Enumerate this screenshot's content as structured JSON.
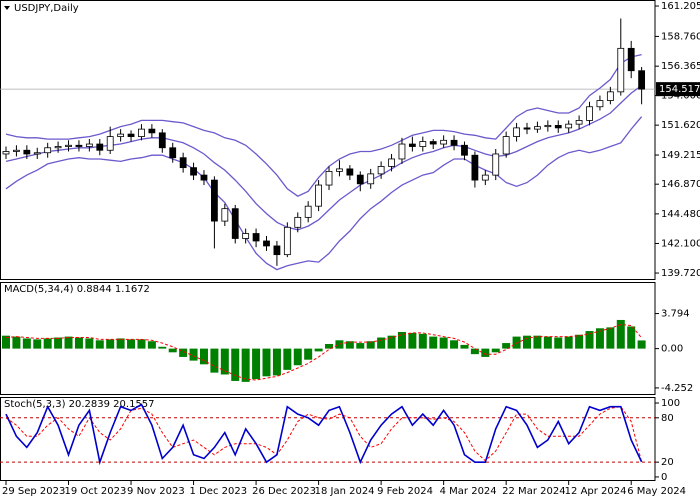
{
  "chart_data": [
    {
      "type": "candlestick",
      "title": "USDJPY,Daily",
      "categories": [
        "29 Sep 2023",
        null,
        null,
        null,
        null,
        null,
        "19 Oct 2023",
        null,
        null,
        null,
        null,
        null,
        "9 Nov 2023",
        null,
        null,
        null,
        null,
        null,
        "1 Dec 2023",
        null,
        null,
        null,
        null,
        null,
        "26 Dec 2023",
        null,
        null,
        null,
        null,
        null,
        "18 Jan 2024",
        null,
        null,
        null,
        null,
        null,
        "9 Feb 2024",
        null,
        null,
        null,
        null,
        null,
        "4 Mar 2024",
        null,
        null,
        null,
        null,
        null,
        "22 Mar 2024",
        null,
        null,
        null,
        null,
        null,
        "12 Apr 2024",
        null,
        null,
        null,
        null,
        null,
        "6 May 2024",
        null
      ],
      "open": [
        149.3,
        149.5,
        149.6,
        149.3,
        149.4,
        149.8,
        149.9,
        150.0,
        149.9,
        150.1,
        149.6,
        150.7,
        150.9,
        150.7,
        151.3,
        151.0,
        149.8,
        149.0,
        148.2,
        147.6,
        147.2,
        143.9,
        144.9,
        142.5,
        142.9,
        142.3,
        141.9,
        141.2,
        143.4,
        144.2,
        145.1,
        146.8,
        147.9,
        148.1,
        147.6,
        146.9,
        147.7,
        148.3,
        148.9,
        150.1,
        149.9,
        150.3,
        150.1,
        150.4,
        150.0,
        149.2,
        147.2,
        147.6,
        149.3,
        150.7,
        151.4,
        151.3,
        151.5,
        151.6,
        151.4,
        151.7,
        152.0,
        153.1,
        153.6,
        154.3,
        157.8,
        156.0
      ],
      "high": [
        149.9,
        150.0,
        150.0,
        149.8,
        150.2,
        150.3,
        150.4,
        150.4,
        150.5,
        150.5,
        151.5,
        151.3,
        151.2,
        151.7,
        151.7,
        151.3,
        150.2,
        149.4,
        148.6,
        148.0,
        147.5,
        145.3,
        145.2,
        143.3,
        143.3,
        142.7,
        142.3,
        143.8,
        144.6,
        145.5,
        147.2,
        148.3,
        148.8,
        148.4,
        147.9,
        148.1,
        148.7,
        149.3,
        150.6,
        150.7,
        150.7,
        150.5,
        150.8,
        150.8,
        150.3,
        149.5,
        148.0,
        149.7,
        151.1,
        151.8,
        151.8,
        151.9,
        152.0,
        152.0,
        152.0,
        152.4,
        153.5,
        154.0,
        154.7,
        160.2,
        158.4,
        156.3
      ],
      "low": [
        148.9,
        149.1,
        148.9,
        148.9,
        149.0,
        149.4,
        149.5,
        149.5,
        149.5,
        149.2,
        149.3,
        150.3,
        150.3,
        150.4,
        150.6,
        149.4,
        148.6,
        147.8,
        147.2,
        146.8,
        141.7,
        143.5,
        142.1,
        142.1,
        141.8,
        141.5,
        140.3,
        141.0,
        143.0,
        143.8,
        144.7,
        146.4,
        147.5,
        147.2,
        146.3,
        146.5,
        147.3,
        147.9,
        148.5,
        149.5,
        149.5,
        149.7,
        149.8,
        149.6,
        148.8,
        146.6,
        146.8,
        147.2,
        149.0,
        150.3,
        150.9,
        151.0,
        151.1,
        151.0,
        151.0,
        151.3,
        151.6,
        152.8,
        153.3,
        154.0,
        155.4,
        153.3
      ],
      "close": [
        149.5,
        149.6,
        149.3,
        149.4,
        149.8,
        149.9,
        150.0,
        149.9,
        150.1,
        149.6,
        150.7,
        150.9,
        150.7,
        151.3,
        151.0,
        149.8,
        149.0,
        148.2,
        147.6,
        147.2,
        143.9,
        144.9,
        142.5,
        142.9,
        142.3,
        141.9,
        141.2,
        143.4,
        144.2,
        145.1,
        146.8,
        147.9,
        148.1,
        147.6,
        146.9,
        147.7,
        148.3,
        148.9,
        150.1,
        149.9,
        150.3,
        150.1,
        150.4,
        150.0,
        149.2,
        147.2,
        147.6,
        149.3,
        150.7,
        151.4,
        151.3,
        151.5,
        151.6,
        151.4,
        151.7,
        152.0,
        153.1,
        153.6,
        154.3,
        157.8,
        156.0,
        154.517
      ],
      "bands": {
        "upper": [
          150.9,
          150.7,
          150.6,
          150.6,
          150.5,
          150.5,
          150.5,
          150.6,
          150.7,
          150.9,
          151.2,
          151.5,
          151.7,
          152.0,
          152.0,
          152.0,
          151.9,
          151.8,
          151.5,
          151.2,
          151.0,
          150.6,
          150.4,
          150.0,
          149.3,
          148.5,
          147.6,
          146.5,
          145.9,
          146.3,
          147.4,
          148.3,
          148.9,
          149.3,
          149.5,
          149.5,
          149.7,
          150.0,
          150.4,
          150.8,
          151.0,
          151.2,
          151.2,
          151.1,
          150.9,
          150.8,
          150.6,
          150.5,
          151.4,
          152.3,
          152.8,
          153.0,
          152.8,
          152.6,
          152.6,
          153.0,
          154.0,
          154.6,
          155.3,
          156.6,
          157.1,
          157.3
        ],
        "middle": [
          148.7,
          148.9,
          149.1,
          149.3,
          149.5,
          149.6,
          149.7,
          149.8,
          149.8,
          149.9,
          150.0,
          150.1,
          150.3,
          150.5,
          150.6,
          150.6,
          150.4,
          150.2,
          149.8,
          149.3,
          148.6,
          148.0,
          147.2,
          146.3,
          145.3,
          144.5,
          143.8,
          143.4,
          143.2,
          143.5,
          144.0,
          144.8,
          145.6,
          146.2,
          146.8,
          147.2,
          147.6,
          148.1,
          148.6,
          149.0,
          149.3,
          149.5,
          149.8,
          150.0,
          149.9,
          149.6,
          149.3,
          149.1,
          149.2,
          149.5,
          149.9,
          150.3,
          150.6,
          150.8,
          151.0,
          151.3,
          151.7,
          152.1,
          152.6,
          153.4,
          154.2,
          154.8
        ],
        "lower": [
          146.5,
          147.1,
          147.6,
          148.0,
          148.5,
          148.7,
          148.9,
          149.0,
          148.9,
          148.9,
          148.8,
          148.7,
          148.9,
          149.0,
          149.2,
          149.2,
          148.9,
          148.6,
          148.1,
          147.4,
          146.2,
          145.4,
          144.0,
          142.6,
          141.3,
          140.5,
          140.0,
          140.3,
          140.5,
          140.7,
          140.6,
          141.3,
          142.3,
          143.1,
          144.1,
          144.9,
          145.5,
          146.2,
          146.8,
          147.2,
          147.6,
          147.8,
          148.4,
          148.9,
          148.9,
          148.4,
          148.0,
          147.7,
          147.0,
          146.7,
          147.0,
          147.6,
          148.4,
          149.0,
          149.4,
          149.6,
          149.4,
          149.6,
          149.9,
          150.2,
          151.3,
          152.3
        ]
      },
      "band_color": "#6a5acd",
      "current_price": 154.517,
      "ylim": [
        139.16,
        161.69
      ],
      "yticks": [
        {
          "value": 161.205,
          "label": "161.205"
        },
        {
          "value": 158.76,
          "label": "158.760"
        },
        {
          "value": 156.365,
          "label": "156.365"
        },
        {
          "value": 154.0,
          "label": "154.000"
        },
        {
          "value": 151.62,
          "label": "151.620"
        },
        {
          "value": 149.215,
          "label": "149.215"
        },
        {
          "value": 146.87,
          "label": "146.870"
        },
        {
          "value": 144.48,
          "label": "144.480"
        },
        {
          "value": 142.1,
          "label": "142.100"
        },
        {
          "value": 139.72,
          "label": "139.720"
        }
      ]
    },
    {
      "type": "bar",
      "title": "MACD(5,34,4) 0.8844 1.1672",
      "color": "#008000",
      "signal_color": "#ff0000",
      "values": [
        1.4,
        1.3,
        1.1,
        1.0,
        1.1,
        1.2,
        1.3,
        1.2,
        1.1,
        0.9,
        1.0,
        1.1,
        1.0,
        1.0,
        0.8,
        0.2,
        -0.4,
        -0.9,
        -1.3,
        -1.7,
        -2.6,
        -2.8,
        -3.5,
        -3.6,
        -3.3,
        -3.0,
        -2.9,
        -2.3,
        -1.8,
        -1.2,
        -0.3,
        0.5,
        0.9,
        0.8,
        0.6,
        0.8,
        1.2,
        1.4,
        1.8,
        1.7,
        1.6,
        1.3,
        1.2,
        0.9,
        0.4,
        -0.6,
        -0.9,
        -0.4,
        0.6,
        1.3,
        1.4,
        1.4,
        1.3,
        1.2,
        1.3,
        1.5,
        1.9,
        2.2,
        2.3,
        3.1,
        2.4,
        0.8844
      ],
      "signal": [
        1.2,
        1.3,
        1.2,
        1.1,
        1.1,
        1.1,
        1.2,
        1.2,
        1.2,
        1.0,
        1.0,
        1.0,
        1.0,
        1.0,
        0.9,
        0.6,
        0.2,
        -0.3,
        -0.8,
        -1.3,
        -1.9,
        -2.4,
        -2.9,
        -3.3,
        -3.4,
        -3.2,
        -3.0,
        -2.6,
        -2.1,
        -1.6,
        -0.9,
        -0.1,
        0.5,
        0.7,
        0.7,
        0.7,
        0.9,
        1.2,
        1.5,
        1.7,
        1.7,
        1.5,
        1.3,
        1.1,
        0.7,
        0.0,
        -0.6,
        -0.6,
        -0.1,
        0.6,
        1.1,
        1.3,
        1.3,
        1.3,
        1.3,
        1.4,
        1.6,
        1.9,
        2.2,
        2.6,
        2.5,
        1.1672
      ],
      "ylim": [
        -5.02,
        7.1
      ],
      "yticks": [
        {
          "value": 3.794,
          "label": "3.794"
        },
        {
          "value": 0,
          "label": "0.00"
        },
        {
          "value": -4.252,
          "label": "-4.252"
        }
      ]
    },
    {
      "type": "line",
      "title": "Stoch(5,3,3) 20.2839 20.1557",
      "color": "#0000cd",
      "signal_color": "#ff0000",
      "values": [
        85,
        55,
        40,
        60,
        95,
        70,
        30,
        70,
        90,
        20,
        60,
        95,
        90,
        98,
        70,
        25,
        40,
        70,
        30,
        25,
        40,
        60,
        30,
        65,
        45,
        20,
        30,
        95,
        85,
        80,
        70,
        90,
        95,
        60,
        20,
        50,
        70,
        85,
        95,
        70,
        85,
        70,
        90,
        70,
        30,
        20,
        20,
        65,
        95,
        90,
        70,
        40,
        50,
        75,
        45,
        60,
        95,
        90,
        95,
        95,
        50,
        20.2839
      ],
      "signal": [
        80,
        70,
        55,
        55,
        70,
        80,
        65,
        55,
        80,
        60,
        50,
        65,
        90,
        93,
        85,
        60,
        40,
        45,
        50,
        40,
        30,
        40,
        45,
        45,
        45,
        40,
        30,
        50,
        75,
        85,
        80,
        78,
        85,
        80,
        55,
        40,
        45,
        65,
        80,
        80,
        80,
        78,
        80,
        75,
        60,
        35,
        22,
        35,
        60,
        85,
        85,
        65,
        55,
        55,
        55,
        55,
        70,
        85,
        93,
        95,
        75,
        20.1557
      ],
      "levels": [
        80,
        20
      ],
      "level_color": "#c00000",
      "ylim": [
        -5.5,
        106.8
      ],
      "yticks": [
        100,
        80,
        20,
        0
      ]
    }
  ]
}
